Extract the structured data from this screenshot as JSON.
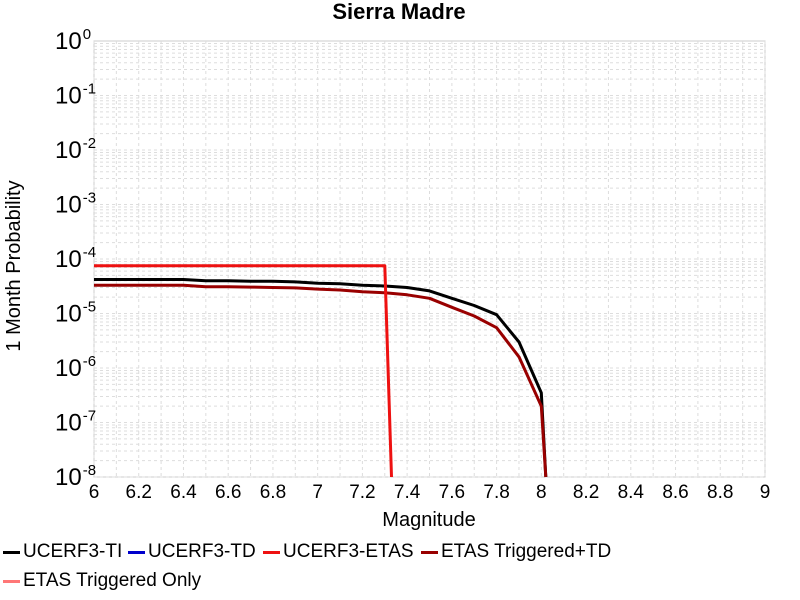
{
  "chart_data": {
    "type": "line",
    "title": "Sierra Madre",
    "xlabel": "Magnitude",
    "ylabel": "1 Month Probability",
    "x_scale": "linear",
    "y_scale": "log",
    "xlim": [
      6,
      9
    ],
    "ylim": [
      1e-08,
      1
    ],
    "x_ticks": [
      "6",
      "6.2",
      "6.4",
      "6.6",
      "6.8",
      "7",
      "7.2",
      "7.4",
      "7.6",
      "7.8",
      "8",
      "8.2",
      "8.4",
      "8.6",
      "8.8",
      "9"
    ],
    "y_ticks": [
      {
        "base": "10",
        "exp": "0"
      },
      {
        "base": "10",
        "exp": "-1"
      },
      {
        "base": "10",
        "exp": "-2"
      },
      {
        "base": "10",
        "exp": "-3"
      },
      {
        "base": "10",
        "exp": "-4"
      },
      {
        "base": "10",
        "exp": "-5"
      },
      {
        "base": "10",
        "exp": "-6"
      },
      {
        "base": "10",
        "exp": "-7"
      },
      {
        "base": "10",
        "exp": "-8"
      }
    ],
    "grid": true,
    "legend_position": "bottom",
    "series": [
      {
        "name": "UCERF3-TI",
        "color": "#000000",
        "x": [
          6.0,
          6.1,
          6.2,
          6.3,
          6.4,
          6.5,
          6.6,
          6.7,
          6.8,
          6.9,
          7.0,
          7.1,
          7.2,
          7.3,
          7.4,
          7.5,
          7.6,
          7.7,
          7.8,
          7.9,
          8.0,
          8.02
        ],
        "y": [
          4.2e-05,
          4.2e-05,
          4.2e-05,
          4.2e-05,
          4.2e-05,
          4e-05,
          4e-05,
          3.9e-05,
          3.9e-05,
          3.8e-05,
          3.6e-05,
          3.5e-05,
          3.3e-05,
          3.2e-05,
          3e-05,
          2.6e-05,
          1.9e-05,
          1.4e-05,
          9.5e-06,
          3e-06,
          3.5e-07,
          1e-08
        ]
      },
      {
        "name": "UCERF3-TD",
        "color": "#0000cc",
        "x": [],
        "y": []
      },
      {
        "name": "UCERF3-ETAS",
        "color": "#ee1111",
        "x": [
          6.0,
          7.3,
          7.33
        ],
        "y": [
          7.5e-05,
          7.5e-05,
          1e-08
        ]
      },
      {
        "name": "ETAS Triggered+TD",
        "color": "#990000",
        "x": [
          6.0,
          6.1,
          6.2,
          6.3,
          6.4,
          6.5,
          6.6,
          6.7,
          6.8,
          6.9,
          7.0,
          7.1,
          7.2,
          7.3,
          7.4,
          7.5,
          7.6,
          7.7,
          7.8,
          7.9,
          8.0,
          8.02
        ],
        "y": [
          3.3e-05,
          3.3e-05,
          3.3e-05,
          3.3e-05,
          3.3e-05,
          3.1e-05,
          3.1e-05,
          3.05e-05,
          3e-05,
          2.95e-05,
          2.8e-05,
          2.7e-05,
          2.5e-05,
          2.4e-05,
          2.2e-05,
          1.9e-05,
          1.3e-05,
          9e-06,
          5.5e-06,
          1.6e-06,
          2e-07,
          1e-08
        ]
      },
      {
        "name": "ETAS Triggered Only",
        "color": "#ff7777",
        "x": [],
        "y": []
      }
    ]
  }
}
